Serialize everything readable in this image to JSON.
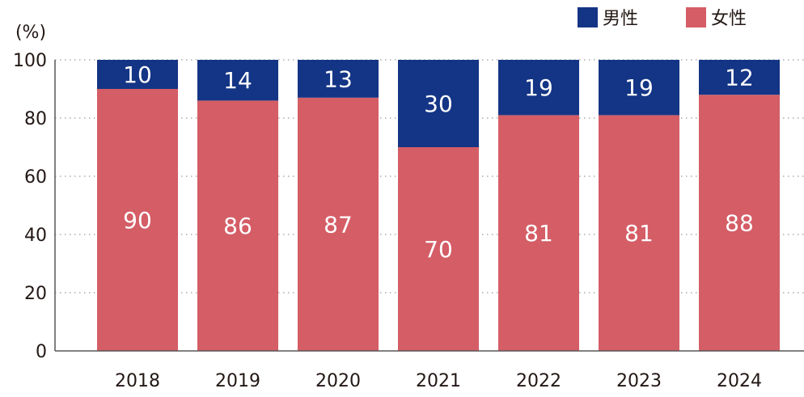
{
  "chart_data": {
    "type": "bar",
    "stacked": true,
    "unit_label": "(%)",
    "categories": [
      "2018",
      "2019",
      "2020",
      "2021",
      "2022",
      "2023",
      "2024"
    ],
    "series": [
      {
        "name": "女性",
        "color": "#d45d66",
        "values": [
          90,
          86,
          87,
          70,
          81,
          81,
          88
        ]
      },
      {
        "name": "男性",
        "color": "#143585",
        "values": [
          10,
          14,
          13,
          30,
          19,
          19,
          12
        ]
      }
    ],
    "legend_order": [
      1,
      0
    ],
    "ylim": [
      0,
      100
    ],
    "yticks": [
      "0",
      "20",
      "40",
      "60",
      "80",
      "100"
    ],
    "grid": "dotted horizontal",
    "legend_position": "top-right"
  }
}
